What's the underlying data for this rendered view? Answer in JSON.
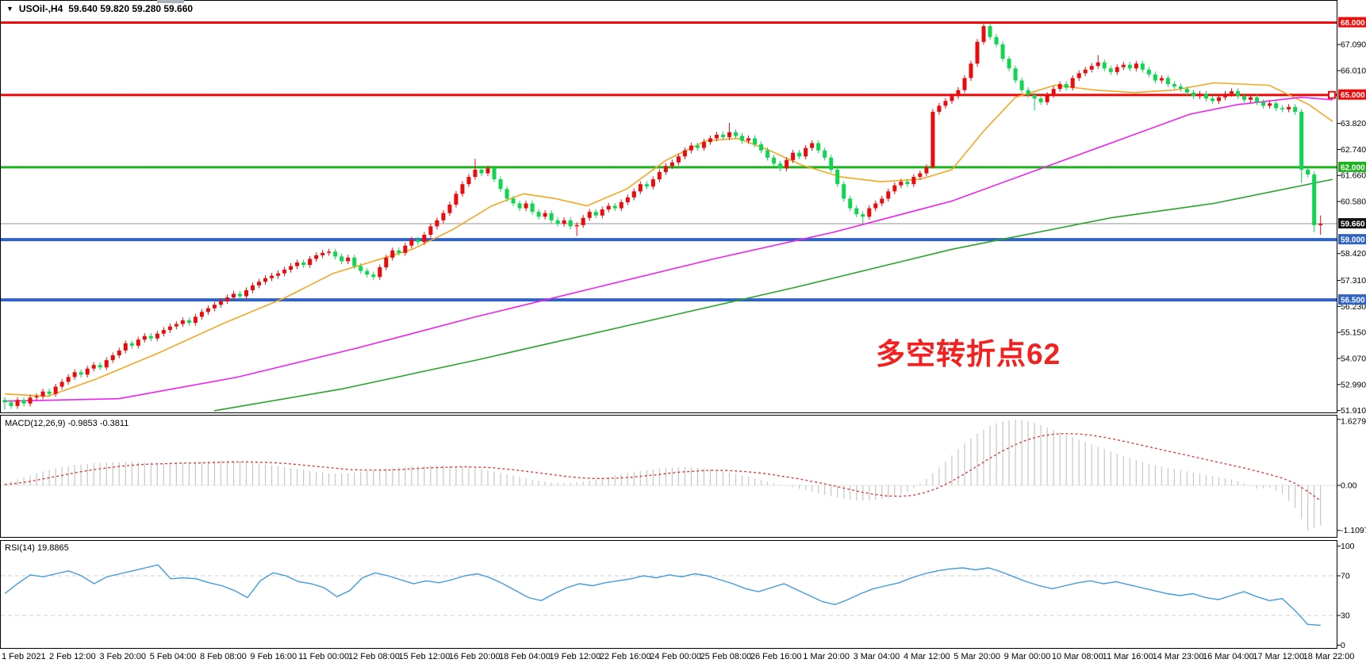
{
  "header": {
    "symbol": "USOil-,H4",
    "ohlc": "59.640 59.820 59.280 59.660",
    "dropdown_icon": "symbol-dropdown"
  },
  "chart_data": [
    {
      "type": "candlestick",
      "title": "USOil-,H4",
      "ohlc_display": "59.640 59.820 59.280 59.660",
      "colors": {
        "bull": "#ea0c0c",
        "bear": "#0fd64f",
        "current_line": "#8c9196"
      },
      "annotation": {
        "text": "多空转折点62",
        "color": "#f2211f"
      },
      "current_price": 59.66,
      "y_ticks": [
        {
          "label": "67.090",
          "price": 67.09
        },
        {
          "label": "66.010",
          "price": 66.01
        },
        {
          "label": "63.820",
          "price": 63.82
        },
        {
          "label": "62.740",
          "price": 62.74
        },
        {
          "label": "61.660",
          "price": 61.66
        },
        {
          "label": "60.580",
          "price": 60.58
        },
        {
          "label": "58.420",
          "price": 58.42
        },
        {
          "label": "57.310",
          "price": 57.31
        },
        {
          "label": "56.230",
          "price": 56.23
        },
        {
          "label": "55.150",
          "price": 55.15
        },
        {
          "label": "54.070",
          "price": 54.07
        },
        {
          "label": "52.990",
          "price": 52.99
        },
        {
          "label": "51.910",
          "price": 51.91
        }
      ],
      "y_badges": [
        {
          "label": "68.000",
          "price": 68.0,
          "bg": "#f00a0a"
        },
        {
          "label": "65.000",
          "price": 65.0,
          "bg": "#f00a0a"
        },
        {
          "label": "62.000",
          "price": 62.0,
          "bg": "#1cb21c"
        },
        {
          "label": "59.660",
          "price": 59.66,
          "bg": "#111111"
        },
        {
          "label": "59.000",
          "price": 59.0,
          "bg": "#2f62c4"
        },
        {
          "label": "56.500",
          "price": 56.5,
          "bg": "#2f62c4"
        }
      ],
      "hlines": [
        {
          "price": 68.0,
          "color": "#f00a0a",
          "width": 3
        },
        {
          "price": 65.0,
          "color": "#f00a0a",
          "width": 3,
          "marker": true
        },
        {
          "price": 62.0,
          "color": "#1cb21c",
          "width": 3
        },
        {
          "price": 59.0,
          "color": "#2f62c4",
          "width": 4
        },
        {
          "price": 56.5,
          "color": "#2f62c4",
          "width": 4
        }
      ],
      "first_open": 52.35,
      "wick": 0.12,
      "closes": [
        52.25,
        52.1,
        52.35,
        52.2,
        52.45,
        52.5,
        52.7,
        52.6,
        52.9,
        53.1,
        53.3,
        53.5,
        53.4,
        53.65,
        53.8,
        53.7,
        54.0,
        54.2,
        54.4,
        54.7,
        54.6,
        54.85,
        55.0,
        54.9,
        55.1,
        55.25,
        55.4,
        55.5,
        55.65,
        55.55,
        55.8,
        56.0,
        56.15,
        56.3,
        56.45,
        56.6,
        56.75,
        56.65,
        56.9,
        57.1,
        57.25,
        57.4,
        57.5,
        57.6,
        57.75,
        57.9,
        58.05,
        57.95,
        58.2,
        58.35,
        58.45,
        58.5,
        58.3,
        58.1,
        58.25,
        57.9,
        57.7,
        57.55,
        57.45,
        57.85,
        58.25,
        58.55,
        58.45,
        58.75,
        59.0,
        58.9,
        59.2,
        59.55,
        59.8,
        60.1,
        60.45,
        60.9,
        61.3,
        61.6,
        61.9,
        61.75,
        61.95,
        61.5,
        61.1,
        60.7,
        60.5,
        60.3,
        60.5,
        60.15,
        59.95,
        60.1,
        59.8,
        59.65,
        59.8,
        59.55,
        59.6,
        59.9,
        60.15,
        60.0,
        60.25,
        60.4,
        60.3,
        60.55,
        60.75,
        61.0,
        61.3,
        61.2,
        61.5,
        61.8,
        62.05,
        62.2,
        62.45,
        62.7,
        62.9,
        62.8,
        63.05,
        63.2,
        63.35,
        63.25,
        63.45,
        63.3,
        63.1,
        63.2,
        62.95,
        62.7,
        62.4,
        62.15,
        61.95,
        62.3,
        62.6,
        62.45,
        62.8,
        63.0,
        62.7,
        62.4,
        61.9,
        61.3,
        60.7,
        60.3,
        60.05,
        59.95,
        60.3,
        60.5,
        60.7,
        61.0,
        61.25,
        61.4,
        61.3,
        61.6,
        61.75,
        62.0,
        64.3,
        64.55,
        64.75,
        64.95,
        65.2,
        65.7,
        66.3,
        67.2,
        67.85,
        67.4,
        67.1,
        66.5,
        66.1,
        65.6,
        65.2,
        65.0,
        64.85,
        64.7,
        65.0,
        65.25,
        65.45,
        65.3,
        65.7,
        65.9,
        66.05,
        66.2,
        66.35,
        66.1,
        65.95,
        66.15,
        66.25,
        66.1,
        66.3,
        66.05,
        65.85,
        65.6,
        65.7,
        65.45,
        65.35,
        65.25,
        65.1,
        64.95,
        65.05,
        64.85,
        64.75,
        64.9,
        65.05,
        65.15,
        64.95,
        64.8,
        64.9,
        64.7,
        64.55,
        64.65,
        64.45,
        64.4,
        64.5,
        64.3,
        61.9,
        61.7,
        59.6,
        59.66
      ],
      "wick_overrides": {
        "0": {
          "l": 51.95
        },
        "74": {
          "h": 62.35
        },
        "90": {
          "l": 59.15
        },
        "114": {
          "h": 63.85
        },
        "135": {
          "l": 59.65
        },
        "146": {
          "l": 61.95
        },
        "154": {
          "h": 68.05
        },
        "162": {
          "l": 64.35
        },
        "172": {
          "h": 66.65
        },
        "204": {
          "l": 61.35
        },
        "206": {
          "l": 59.3
        },
        "207": {
          "h": 60.0,
          "l": 59.2
        }
      },
      "moving_averages": [
        {
          "name": "ma-fast-orange",
          "color": "#f5a623",
          "points": [
            [
              6,
              52.6
            ],
            [
              60,
              52.5
            ],
            [
              120,
              53.2
            ],
            [
              200,
              54.3
            ],
            [
              280,
              55.5
            ],
            [
              360,
              56.6
            ],
            [
              420,
              57.6
            ],
            [
              470,
              58.1
            ],
            [
              520,
              58.6
            ],
            [
              570,
              59.4
            ],
            [
              620,
              60.4
            ],
            [
              660,
              60.9
            ],
            [
              700,
              60.7
            ],
            [
              740,
              60.4
            ],
            [
              790,
              61.1
            ],
            [
              840,
              62.3
            ],
            [
              890,
              63.1
            ],
            [
              930,
              63.2
            ],
            [
              970,
              62.7
            ],
            [
              1010,
              62.1
            ],
            [
              1060,
              61.6
            ],
            [
              1110,
              61.4
            ],
            [
              1160,
              61.5
            ],
            [
              1200,
              61.9
            ],
            [
              1240,
              63.5
            ],
            [
              1280,
              64.9
            ],
            [
              1330,
              65.4
            ],
            [
              1380,
              65.2
            ],
            [
              1430,
              65.1
            ],
            [
              1480,
              65.2
            ],
            [
              1530,
              65.5
            ],
            [
              1600,
              65.4
            ],
            [
              1650,
              64.6
            ],
            [
              1680,
              63.9
            ]
          ]
        },
        {
          "name": "ma-medium-magenta",
          "color": "#ee22ee",
          "points": [
            [
              6,
              52.3
            ],
            [
              150,
              52.4
            ],
            [
              300,
              53.3
            ],
            [
              450,
              54.5
            ],
            [
              600,
              55.8
            ],
            [
              750,
              57.0
            ],
            [
              900,
              58.2
            ],
            [
              1050,
              59.3
            ],
            [
              1200,
              60.6
            ],
            [
              1300,
              61.8
            ],
            [
              1400,
              63.0
            ],
            [
              1500,
              64.2
            ],
            [
              1560,
              64.6
            ],
            [
              1640,
              64.9
            ],
            [
              1680,
              64.8
            ]
          ]
        },
        {
          "name": "ma-slow-green",
          "color": "#2aa32a",
          "points": [
            [
              270,
              51.9
            ],
            [
              430,
              52.8
            ],
            [
              600,
              54.0
            ],
            [
              800,
              55.5
            ],
            [
              1000,
              57.0
            ],
            [
              1200,
              58.6
            ],
            [
              1400,
              59.9
            ],
            [
              1530,
              60.5
            ],
            [
              1680,
              61.5
            ]
          ]
        }
      ],
      "x_axis_labels": [
        "1 Feb 2021",
        "2 Feb 12:00",
        "3 Feb 20:00",
        "5 Feb 04:00",
        "8 Feb 08:00",
        "9 Feb 16:00",
        "11 Feb 00:00",
        "12 Feb 08:00",
        "15 Feb 12:00",
        "16 Feb 20:00",
        "18 Feb 04:00",
        "19 Feb 12:00",
        "22 Feb 16:00",
        "24 Feb 00:00",
        "25 Feb 08:00",
        "26 Feb 16:00",
        "1 Mar 20:00",
        "3 Mar 04:00",
        "4 Mar 12:00",
        "5 Mar 20:00",
        "9 Mar 00:00",
        "10 Mar 08:00",
        "11 Mar 16:00",
        "14 Mar 23:00",
        "16 Mar 04:00",
        "17 Mar 12:00",
        "18 Mar 22:00"
      ]
    },
    {
      "type": "bar",
      "name": "MACD",
      "label": "MACD(12,26,9) -0.9853 -0.3811",
      "y_ticks": [
        "1.6279",
        "0.00",
        "-1.1097"
      ],
      "y_tick_values": [
        1.6279,
        0.0,
        -1.1097
      ],
      "colors": {
        "hist": "#c6c6c6",
        "signal": "#e03232"
      },
      "values": [
        0.05,
        0.15,
        0.25,
        0.35,
        0.42,
        0.48,
        0.52,
        0.55,
        0.57,
        0.58,
        0.58,
        0.57,
        0.56,
        0.56,
        0.57,
        0.58,
        0.6,
        0.61,
        0.6,
        0.57,
        0.54,
        0.5,
        0.45,
        0.4,
        0.35,
        0.31,
        0.28,
        0.3,
        0.34,
        0.38,
        0.42,
        0.45,
        0.47,
        0.49,
        0.5,
        0.49,
        0.46,
        0.42,
        0.36,
        0.3,
        0.23,
        0.16,
        0.1,
        0.06,
        0.05,
        0.08,
        0.13,
        0.19,
        0.26,
        0.32,
        0.37,
        0.41,
        0.44,
        0.45,
        0.44,
        0.41,
        0.36,
        0.3,
        0.23,
        0.15,
        0.07,
        0.0,
        -0.07,
        -0.14,
        -0.22,
        -0.29,
        -0.35,
        -0.38,
        -0.37,
        -0.32,
        -0.24,
        -0.1,
        0.12,
        0.4,
        0.7,
        1.0,
        1.25,
        1.45,
        1.58,
        1.63,
        1.6,
        1.5,
        1.38,
        1.26,
        1.14,
        1.02,
        0.9,
        0.79,
        0.68,
        0.58,
        0.5,
        0.44,
        0.38,
        0.32,
        0.26,
        0.21,
        0.15,
        0.05,
        -0.08,
        -0.05,
        -0.2,
        -0.55,
        -1.11,
        -0.99
      ],
      "signal": [
        0.02,
        0.05,
        0.1,
        0.16,
        0.22,
        0.28,
        0.34,
        0.39,
        0.43,
        0.47,
        0.5,
        0.52,
        0.53,
        0.54,
        0.55,
        0.55,
        0.56,
        0.57,
        0.58,
        0.58,
        0.57,
        0.56,
        0.54,
        0.51,
        0.48,
        0.45,
        0.42,
        0.39,
        0.38,
        0.38,
        0.38,
        0.39,
        0.41,
        0.43,
        0.44,
        0.45,
        0.46,
        0.45,
        0.44,
        0.41,
        0.38,
        0.34,
        0.3,
        0.26,
        0.22,
        0.19,
        0.17,
        0.17,
        0.18,
        0.2,
        0.23,
        0.26,
        0.3,
        0.33,
        0.35,
        0.37,
        0.37,
        0.36,
        0.34,
        0.31,
        0.27,
        0.22,
        0.17,
        0.11,
        0.05,
        -0.02,
        -0.09,
        -0.16,
        -0.22,
        -0.26,
        -0.27,
        -0.25,
        -0.18,
        -0.07,
        0.08,
        0.26,
        0.45,
        0.65,
        0.83,
        0.99,
        1.12,
        1.21,
        1.26,
        1.28,
        1.27,
        1.24,
        1.19,
        1.13,
        1.06,
        0.99,
        0.92,
        0.85,
        0.78,
        0.71,
        0.64,
        0.57,
        0.5,
        0.43,
        0.35,
        0.27,
        0.18,
        0.05,
        -0.15,
        -0.38
      ]
    },
    {
      "type": "line",
      "name": "RSI",
      "label": "RSI(14) 19.8865",
      "y_ticks": [
        "100",
        "70",
        "30",
        "0"
      ],
      "y_tick_values": [
        100,
        70,
        30,
        0
      ],
      "levels": [
        70,
        30
      ],
      "color": "#3f9be0",
      "level_color": "#cfcfcf",
      "ylim": [
        0,
        100
      ],
      "values": [
        52,
        62,
        71,
        69,
        72,
        75,
        70,
        62,
        69,
        72,
        75,
        78,
        81,
        67,
        68,
        67,
        63,
        60,
        55,
        48,
        65,
        73,
        70,
        64,
        62,
        58,
        49,
        55,
        68,
        73,
        70,
        66,
        62,
        65,
        63,
        66,
        70,
        72,
        68,
        62,
        55,
        48,
        45,
        52,
        58,
        62,
        60,
        63,
        65,
        67,
        70,
        68,
        71,
        69,
        72,
        70,
        66,
        62,
        57,
        54,
        58,
        62,
        56,
        50,
        44,
        41,
        46,
        52,
        57,
        60,
        63,
        68,
        72,
        75,
        77,
        78,
        76,
        78,
        74,
        69,
        64,
        60,
        57,
        60,
        63,
        65,
        62,
        64,
        61,
        58,
        55,
        52,
        50,
        52,
        48,
        46,
        50,
        54,
        49,
        45,
        47,
        35,
        21,
        20
      ]
    }
  ]
}
